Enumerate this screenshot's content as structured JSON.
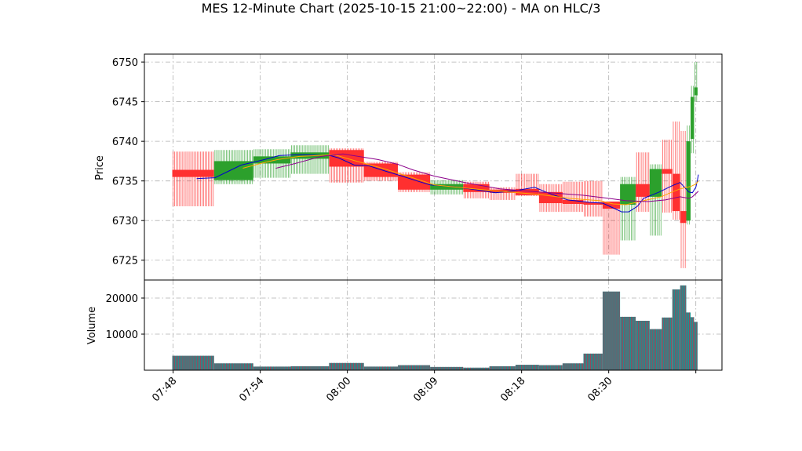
{
  "chart_data": {
    "type": "candlestick",
    "title": "MES 12-Minute Chart (2025-10-15 21:00~22:00) - MA on HLC/3",
    "price_panel": {
      "ylabel": "Price",
      "ylim": [
        6722.5,
        6751
      ],
      "yticks": [
        6725,
        6730,
        6735,
        6740,
        6745,
        6750
      ]
    },
    "volume_panel": {
      "ylabel": "Volume",
      "ylim": [
        0,
        25000
      ],
      "yticks": [
        10000,
        20000
      ],
      "ytick_labels": [
        "10000",
        "20000"
      ]
    },
    "x_ticks": [
      "07:48",
      "07:54",
      "08:00",
      "08:09",
      "08:18",
      "08:30",
      ""
    ],
    "x_tick_positions": [
      0,
      10,
      20,
      30,
      40,
      50,
      60
    ],
    "xlim": [
      -3.3,
      63
    ],
    "grid": true,
    "colors": {
      "up": "#2ca02c",
      "down": "#ff3030",
      "ma_fast": "#0000cd",
      "ma_mid": "#ffa500",
      "ma_slow": "#8b008b",
      "vol_edge": "#c0304a",
      "vol_fill": "#1f8f8f"
    },
    "candles": [
      {
        "x0": -0.1,
        "x1": 4.7,
        "open": 6736.4,
        "close": 6735.5,
        "high": 6738.7,
        "low": 6731.8,
        "volume": 4000
      },
      {
        "x0": 4.7,
        "x1": 9.2,
        "open": 6735.1,
        "close": 6737.5,
        "high": 6738.9,
        "low": 6734.6,
        "volume": 1900
      },
      {
        "x0": 9.2,
        "x1": 13.5,
        "open": 6737.2,
        "close": 6738.1,
        "high": 6739.0,
        "low": 6735.4,
        "volume": 1000
      },
      {
        "x0": 13.5,
        "x1": 17.9,
        "open": 6737.8,
        "close": 6738.6,
        "high": 6739.5,
        "low": 6735.9,
        "volume": 1100
      },
      {
        "x0": 17.9,
        "x1": 21.9,
        "open": 6738.9,
        "close": 6736.8,
        "high": 6739.1,
        "low": 6734.8,
        "volume": 2000
      },
      {
        "x0": 21.9,
        "x1": 25.8,
        "open": 6737.2,
        "close": 6735.5,
        "high": 6737.4,
        "low": 6735.0,
        "volume": 1000
      },
      {
        "x0": 25.8,
        "x1": 29.5,
        "open": 6735.8,
        "close": 6733.9,
        "high": 6736.1,
        "low": 6733.6,
        "volume": 1400
      },
      {
        "x0": 29.5,
        "x1": 33.3,
        "open": 6733.9,
        "close": 6734.6,
        "high": 6735.1,
        "low": 6733.3,
        "volume": 900
      },
      {
        "x0": 33.3,
        "x1": 36.3,
        "open": 6734.6,
        "close": 6733.6,
        "high": 6734.9,
        "low": 6732.8,
        "volume": 700
      },
      {
        "x0": 36.3,
        "x1": 39.3,
        "open": 6733.9,
        "close": 6733.5,
        "high": 6734.2,
        "low": 6732.6,
        "volume": 1100
      },
      {
        "x0": 39.3,
        "x1": 42.0,
        "open": 6734.0,
        "close": 6733.2,
        "high": 6735.9,
        "low": 6733.1,
        "volume": 1500
      },
      {
        "x0": 42.0,
        "x1": 44.7,
        "open": 6733.6,
        "close": 6732.2,
        "high": 6734.6,
        "low": 6731.1,
        "volume": 1400
      },
      {
        "x0": 44.7,
        "x1": 47.1,
        "open": 6732.6,
        "close": 6732.1,
        "high": 6734.9,
        "low": 6731.1,
        "volume": 1900
      },
      {
        "x0": 47.1,
        "x1": 49.3,
        "open": 6732.3,
        "close": 6732.0,
        "high": 6735.0,
        "low": 6730.5,
        "volume": 4600
      },
      {
        "x0": 49.3,
        "x1": 51.3,
        "open": 6732.4,
        "close": 6731.5,
        "high": 6732.4,
        "low": 6725.7,
        "volume": 21800
      },
      {
        "x0": 51.3,
        "x1": 53.1,
        "open": 6732.0,
        "close": 6734.6,
        "high": 6735.5,
        "low": 6727.5,
        "volume": 14800
      },
      {
        "x0": 53.1,
        "x1": 54.7,
        "open": 6734.6,
        "close": 6733.0,
        "high": 6738.6,
        "low": 6731.1,
        "volume": 13700
      },
      {
        "x0": 54.7,
        "x1": 56.1,
        "open": 6733.0,
        "close": 6736.5,
        "high": 6737.1,
        "low": 6728.1,
        "volume": 11400
      },
      {
        "x0": 56.1,
        "x1": 57.3,
        "open": 6736.5,
        "close": 6735.9,
        "high": 6740.2,
        "low": 6731.0,
        "volume": 14600
      },
      {
        "x0": 57.3,
        "x1": 58.2,
        "open": 6735.9,
        "close": 6731.2,
        "high": 6742.5,
        "low": 6730.1,
        "volume": 22400
      },
      {
        "x0": 58.2,
        "x1": 58.9,
        "open": 6731.2,
        "close": 6729.7,
        "high": 6741.3,
        "low": 6724.0,
        "volume": 23500
      },
      {
        "x0": 58.9,
        "x1": 59.4,
        "open": 6730.0,
        "close": 6740.0,
        "high": 6742.0,
        "low": 6729.5,
        "volume": 16000
      },
      {
        "x0": 59.4,
        "x1": 59.8,
        "open": 6740.3,
        "close": 6745.6,
        "high": 6747.0,
        "low": 6738.5,
        "volume": 14700
      },
      {
        "x0": 59.8,
        "x1": 60.2,
        "open": 6745.8,
        "close": 6746.8,
        "high": 6750.0,
        "low": 6745.0,
        "volume": 13400
      }
    ],
    "ma_series": [
      {
        "name": "",
        "color": "#0000cd",
        "points": [
          [
            2.7,
            6735.3
          ],
          [
            4.8,
            6735.4
          ],
          [
            6.5,
            6736.3
          ],
          [
            7.8,
            6737.0
          ],
          [
            10.5,
            6737.7
          ],
          [
            12.2,
            6738.2
          ],
          [
            14.5,
            6738.3
          ],
          [
            18.0,
            6738.2
          ],
          [
            19.0,
            6737.9
          ],
          [
            20.8,
            6737.0
          ],
          [
            22.5,
            6736.9
          ],
          [
            24.5,
            6736.2
          ],
          [
            26.3,
            6735.6
          ],
          [
            28.0,
            6735.0
          ],
          [
            29.5,
            6734.5
          ],
          [
            32.0,
            6734.3
          ],
          [
            34.0,
            6734.0
          ],
          [
            37.0,
            6733.5
          ],
          [
            39.5,
            6733.8
          ],
          [
            41.5,
            6734.2
          ],
          [
            43.0,
            6733.5
          ],
          [
            45.3,
            6732.6
          ],
          [
            47.8,
            6732.3
          ],
          [
            49.3,
            6732.2
          ],
          [
            50.5,
            6731.6
          ],
          [
            51.5,
            6731.1
          ],
          [
            52.3,
            6731.1
          ],
          [
            53.3,
            6731.8
          ],
          [
            54.0,
            6732.8
          ],
          [
            55.8,
            6733.6
          ],
          [
            57.3,
            6734.4
          ],
          [
            58.2,
            6734.8
          ],
          [
            59.2,
            6733.6
          ],
          [
            59.6,
            6733.5
          ],
          [
            60.0,
            6734.2
          ],
          [
            60.2,
            6735.2
          ],
          [
            60.3,
            6735.8
          ]
        ]
      },
      {
        "name": "",
        "color": "#ffa500",
        "points": [
          [
            8.0,
            6736.6
          ],
          [
            10.0,
            6737.2
          ],
          [
            12.0,
            6737.7
          ],
          [
            14.5,
            6738.1
          ],
          [
            18.5,
            6738.3
          ],
          [
            21.0,
            6737.5
          ],
          [
            24.0,
            6736.6
          ],
          [
            27.5,
            6735.4
          ],
          [
            30.0,
            6734.5
          ],
          [
            34.5,
            6734.0
          ],
          [
            38.5,
            6733.6
          ],
          [
            42.0,
            6733.3
          ],
          [
            45.5,
            6732.8
          ],
          [
            49.0,
            6732.5
          ],
          [
            50.5,
            6732.1
          ],
          [
            52.0,
            6732.0
          ],
          [
            54.0,
            6732.5
          ],
          [
            56.0,
            6733.0
          ],
          [
            57.5,
            6733.7
          ],
          [
            58.2,
            6734.0
          ],
          [
            59.4,
            6734.3
          ],
          [
            60.0,
            6734.6
          ],
          [
            60.3,
            6735.0
          ]
        ]
      },
      {
        "name": "",
        "color": "#8b008b",
        "points": [
          [
            11.8,
            6736.6
          ],
          [
            14.0,
            6737.2
          ],
          [
            17.0,
            6738.1
          ],
          [
            19.5,
            6738.4
          ],
          [
            23.5,
            6737.7
          ],
          [
            25.8,
            6737.1
          ],
          [
            27.5,
            6736.4
          ],
          [
            30.0,
            6735.6
          ],
          [
            33.5,
            6734.8
          ],
          [
            37.5,
            6734.0
          ],
          [
            42.0,
            6733.6
          ],
          [
            47.0,
            6733.2
          ],
          [
            50.0,
            6732.8
          ],
          [
            52.0,
            6732.5
          ],
          [
            54.5,
            6732.4
          ],
          [
            56.5,
            6732.6
          ],
          [
            58.2,
            6733.0
          ],
          [
            59.2,
            6732.8
          ],
          [
            59.6,
            6733.0
          ],
          [
            60.3,
            6733.7
          ]
        ]
      }
    ]
  }
}
